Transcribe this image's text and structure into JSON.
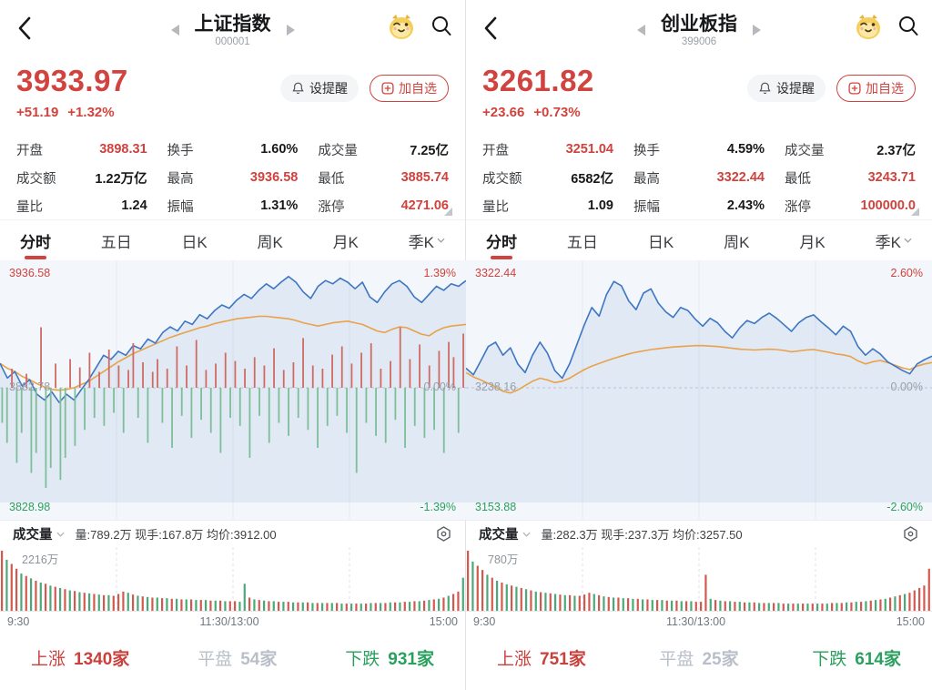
{
  "colors": {
    "accent_red": "#d0433e",
    "green": "#2aa05e",
    "flat_gray": "#b9bfc8",
    "blue_line": "#3d76c2",
    "orange_line": "#e9a24b",
    "area_fill": "rgba(61,118,194,0.10)",
    "chart_bg": "#f3f6fa",
    "grid": "#e7ecf3",
    "grid_dash": "#c8cdd6",
    "tick_red": "#cf6b63",
    "tick_green": "#7cbf98",
    "vol_red": "#d25950",
    "vol_green": "#4aa97a"
  },
  "tabs": [
    {
      "label": "分时",
      "active": true
    },
    {
      "label": "五日",
      "active": false
    },
    {
      "label": "日K",
      "active": false
    },
    {
      "label": "周K",
      "active": false
    },
    {
      "label": "月K",
      "active": false
    },
    {
      "label": "季K",
      "active": false,
      "dropdown": true
    }
  ],
  "time_axis": {
    "open": "9:30",
    "mid": "11:30/13:00",
    "close": "15:00"
  },
  "panels": [
    {
      "nav": {
        "title": "上证指数",
        "code": "000001"
      },
      "quote": {
        "price": "3933.97",
        "change": "+51.19",
        "change_pct": "+1.32%"
      },
      "actions": {
        "alert": "设提醒",
        "add": "加自选"
      },
      "stats": [
        {
          "label": "开盘",
          "value": "3898.31",
          "red": true
        },
        {
          "label": "换手",
          "value": "1.60%",
          "red": false
        },
        {
          "label": "成交量",
          "value": "7.25亿",
          "red": false
        },
        {
          "label": "成交额",
          "value": "1.22万亿",
          "red": false
        },
        {
          "label": "最高",
          "value": "3936.58",
          "red": true
        },
        {
          "label": "最低",
          "value": "3885.74",
          "red": true
        },
        {
          "label": "量比",
          "value": "1.24",
          "red": false
        },
        {
          "label": "振幅",
          "value": "1.31%",
          "red": false
        },
        {
          "label": "涨停",
          "value": "4271.06",
          "red": true
        }
      ],
      "chart": {
        "type": "line",
        "high": "3936.58",
        "high_pct": "1.39%",
        "mid": "3882.78",
        "mid_pct": "0.00%",
        "low": "3828.98",
        "low_pct": "-1.39%",
        "limit": 1.39,
        "price": [
          0.3,
          0.12,
          0.2,
          0.02,
          0.1,
          -0.08,
          -0.15,
          -0.05,
          -0.18,
          -0.08,
          -0.15,
          -0.02,
          0.1,
          0.25,
          0.4,
          0.35,
          0.45,
          0.4,
          0.52,
          0.48,
          0.6,
          0.55,
          0.68,
          0.75,
          0.7,
          0.82,
          0.78,
          0.9,
          0.85,
          0.95,
          1.02,
          0.98,
          1.08,
          1.15,
          1.1,
          1.2,
          1.28,
          1.22,
          1.3,
          1.37,
          1.3,
          1.18,
          1.1,
          1.25,
          1.32,
          1.28,
          1.35,
          1.3,
          1.22,
          1.3,
          1.12,
          1.05,
          1.18,
          1.28,
          1.32,
          1.25,
          1.12,
          1.05,
          1.15,
          1.25,
          1.2,
          1.28,
          1.25,
          1.32
        ],
        "avg": [
          0.3,
          0.24,
          0.2,
          0.14,
          0.1,
          0.05,
          0.01,
          -0.02,
          -0.03,
          -0.02,
          0.0,
          0.04,
          0.08,
          0.14,
          0.2,
          0.26,
          0.32,
          0.37,
          0.42,
          0.46,
          0.5,
          0.54,
          0.58,
          0.62,
          0.65,
          0.68,
          0.71,
          0.74,
          0.76,
          0.79,
          0.81,
          0.83,
          0.85,
          0.86,
          0.87,
          0.88,
          0.88,
          0.87,
          0.86,
          0.85,
          0.83,
          0.8,
          0.78,
          0.76,
          0.78,
          0.8,
          0.81,
          0.82,
          0.8,
          0.78,
          0.74,
          0.7,
          0.68,
          0.72,
          0.75,
          0.74,
          0.7,
          0.66,
          0.64,
          0.7,
          0.74,
          0.76,
          0.77,
          0.78
        ],
        "ticks": [
          -35,
          -55,
          30,
          -75,
          -45,
          22,
          -85,
          -65,
          95,
          -100,
          -80,
          38,
          -92,
          -70,
          45,
          -58,
          32,
          -42,
          55,
          -30,
          25,
          -38,
          60,
          -25,
          35,
          -45,
          28,
          70,
          -30,
          40,
          -55,
          25,
          45,
          -35,
          30,
          -60,
          65,
          -28,
          35,
          -50,
          75,
          -32,
          28,
          -45,
          38,
          -65,
          55,
          -30,
          42,
          -38,
          30,
          -70,
          48,
          -28,
          35,
          -55,
          62,
          -35,
          28,
          -48,
          40,
          -30,
          78,
          -42,
          35,
          -60,
          30,
          -38,
          52,
          -28,
          65,
          -45,
          38,
          -85,
          55,
          -35,
          70,
          -48,
          30,
          -55,
          42,
          -32,
          95,
          -60,
          45,
          -38,
          68,
          -50,
          35,
          -42,
          58,
          -65,
          72,
          48,
          -45,
          85
        ]
      },
      "volume_header": {
        "label": "成交量",
        "stats": "量:789.2万 现手:167.8万 均价:3912.00"
      },
      "volume": {
        "max_label": "2216万",
        "bars": [
          100,
          -85,
          78,
          70,
          -62,
          58,
          -54,
          50,
          -47,
          45,
          -42,
          40,
          -38,
          36,
          -34,
          33,
          -31,
          30,
          -29,
          28,
          -27,
          26,
          -26,
          25,
          28,
          32,
          -30,
          27,
          -25,
          24,
          -23,
          22,
          -22,
          21,
          -21,
          20,
          -20,
          19,
          -19,
          19,
          -18,
          18,
          -18,
          17,
          -17,
          17,
          -16,
          16,
          16,
          -15,
          -45,
          22,
          -19,
          18,
          -17,
          16,
          -16,
          15,
          -15,
          15,
          -14,
          14,
          -14,
          14,
          -13,
          13,
          -13,
          13,
          -13,
          13,
          -12,
          12,
          -12,
          12,
          -12,
          12,
          -13,
          13,
          -13,
          13,
          -14,
          14,
          -14,
          15,
          -15,
          16,
          -16,
          17,
          -18,
          19,
          -20,
          22,
          -25,
          28,
          32,
          -55
        ]
      },
      "breadth": {
        "up_label": "上涨",
        "up": "1340家",
        "flat_label": "平盘",
        "flat": "54家",
        "down_label": "下跌",
        "down": "931家"
      }
    },
    {
      "nav": {
        "title": "创业板指",
        "code": "399006"
      },
      "quote": {
        "price": "3261.82",
        "change": "+23.66",
        "change_pct": "+0.73%"
      },
      "actions": {
        "alert": "设提醒",
        "add": "加自选"
      },
      "stats": [
        {
          "label": "开盘",
          "value": "3251.04",
          "red": true
        },
        {
          "label": "换手",
          "value": "4.59%",
          "red": false
        },
        {
          "label": "成交量",
          "value": "2.37亿",
          "red": false
        },
        {
          "label": "成交额",
          "value": "6582亿",
          "red": false
        },
        {
          "label": "最高",
          "value": "3322.44",
          "red": true
        },
        {
          "label": "最低",
          "value": "3243.71",
          "red": true
        },
        {
          "label": "量比",
          "value": "1.09",
          "red": false
        },
        {
          "label": "振幅",
          "value": "2.43%",
          "red": false
        },
        {
          "label": "涨停",
          "value": "100000.0",
          "red": true
        }
      ],
      "chart": {
        "type": "line",
        "high": "3322.44",
        "high_pct": "2.60%",
        "mid": "3238.16",
        "mid_pct": "0.00%",
        "low": "3153.88",
        "low_pct": "-2.60%",
        "limit": 2.6,
        "price": [
          0.45,
          0.3,
          0.62,
          0.95,
          1.05,
          0.75,
          0.92,
          0.55,
          0.35,
          0.75,
          1.05,
          0.8,
          0.4,
          0.22,
          0.55,
          1.0,
          1.45,
          1.85,
          1.65,
          2.15,
          2.45,
          2.35,
          2.0,
          1.8,
          2.18,
          2.28,
          1.95,
          1.75,
          1.62,
          1.85,
          1.78,
          1.58,
          1.42,
          1.6,
          1.5,
          1.3,
          1.15,
          1.38,
          1.55,
          1.48,
          1.62,
          1.72,
          1.6,
          1.45,
          1.3,
          1.5,
          1.62,
          1.68,
          1.52,
          1.38,
          1.22,
          1.42,
          1.3,
          0.95,
          0.75,
          0.9,
          0.78,
          0.6,
          0.5,
          0.4,
          0.32,
          0.55,
          0.65,
          0.73
        ],
        "avg": [
          0.35,
          0.25,
          0.18,
          0.1,
          0.02,
          -0.08,
          -0.12,
          -0.05,
          0.05,
          0.15,
          0.22,
          0.18,
          0.12,
          0.15,
          0.22,
          0.32,
          0.42,
          0.5,
          0.56,
          0.62,
          0.68,
          0.73,
          0.78,
          0.82,
          0.85,
          0.88,
          0.9,
          0.92,
          0.94,
          0.95,
          0.96,
          0.97,
          0.97,
          0.96,
          0.95,
          0.93,
          0.91,
          0.89,
          0.88,
          0.87,
          0.88,
          0.89,
          0.88,
          0.86,
          0.83,
          0.85,
          0.87,
          0.88,
          0.85,
          0.82,
          0.78,
          0.76,
          0.72,
          0.62,
          0.55,
          0.6,
          0.63,
          0.58,
          0.52,
          0.46,
          0.42,
          0.5,
          0.55,
          0.58
        ],
        "ticks": []
      },
      "volume_header": {
        "label": "成交量",
        "stats": "量:282.3万 现手:237.3万 均价:3257.50"
      },
      "volume": {
        "max_label": "780万",
        "bars": [
          100,
          -82,
          75,
          68,
          -60,
          55,
          -50,
          47,
          -44,
          42,
          -40,
          38,
          -36,
          34,
          -32,
          31,
          -30,
          29,
          -28,
          27,
          -26,
          26,
          -25,
          25,
          27,
          30,
          -28,
          26,
          -24,
          23,
          -22,
          22,
          -21,
          21,
          -20,
          20,
          -19,
          19,
          -18,
          18,
          -18,
          17,
          -17,
          17,
          -16,
          16,
          -16,
          15,
          15,
          60,
          -20,
          18,
          -17,
          16,
          -16,
          15,
          -15,
          14,
          -14,
          14,
          -13,
          13,
          -13,
          13,
          -13,
          12,
          -12,
          12,
          -12,
          12,
          -12,
          12,
          -12,
          12,
          -12,
          13,
          -13,
          13,
          -14,
          14,
          -15,
          15,
          -16,
          17,
          -18,
          19,
          -20,
          22,
          -24,
          26,
          -28,
          30,
          34,
          38,
          42,
          70
        ]
      },
      "breadth": {
        "up_label": "上涨",
        "up": "751家",
        "flat_label": "平盘",
        "flat": "25家",
        "down_label": "下跌",
        "down": "614家"
      }
    }
  ]
}
